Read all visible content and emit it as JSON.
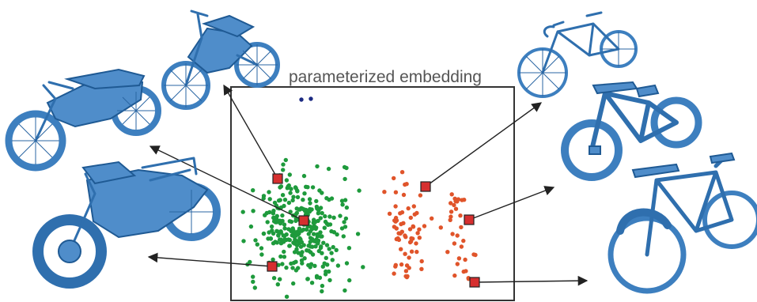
{
  "figure": {
    "title": "parameterized embedding"
  },
  "colors": {
    "frame": "#333333",
    "title": "#555555",
    "marker_fill": "#d62f2f",
    "marker_stroke": "#222222",
    "cluster_motorcycle": "#1e9a3c",
    "cluster_bicycle": "#e0542a",
    "cluster_outlier": "#1c2a82",
    "thumbnail": "#4f8dca",
    "arrow": "#222222"
  },
  "clusters": [
    {
      "name": "motorcycle",
      "color_key": "cluster_motorcycle",
      "count": 320
    },
    {
      "name": "bicycle",
      "color_key": "cluster_bicycle",
      "count": 95
    },
    {
      "name": "outlier",
      "color_key": "cluster_outlier",
      "count": 2
    }
  ],
  "markers": [
    {
      "id": "m1",
      "target": "dirt-bike"
    },
    {
      "id": "m2",
      "target": "cruiser-motorcycle"
    },
    {
      "id": "m3",
      "target": "naked-motorcycle"
    },
    {
      "id": "m4",
      "target": "road-bicycle"
    },
    {
      "id": "m5",
      "target": "cruiser-bicycle"
    },
    {
      "id": "m6",
      "target": "city-bicycle"
    }
  ],
  "thumbnails": [
    {
      "id": "dirt-bike",
      "icon": "dirt-bike-icon"
    },
    {
      "id": "cruiser-motorcycle",
      "icon": "cruiser-motorcycle-icon"
    },
    {
      "id": "naked-motorcycle",
      "icon": "naked-motorcycle-icon"
    },
    {
      "id": "road-bicycle",
      "icon": "road-bicycle-icon"
    },
    {
      "id": "cruiser-bicycle",
      "icon": "cruiser-bicycle-icon"
    },
    {
      "id": "city-bicycle",
      "icon": "city-bicycle-icon"
    }
  ]
}
